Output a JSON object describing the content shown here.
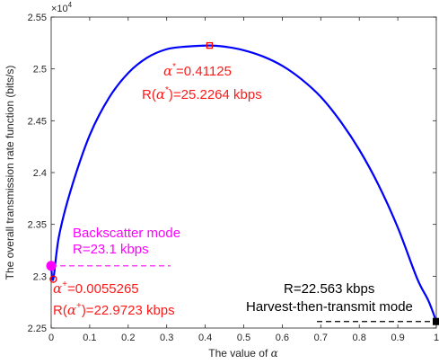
{
  "chart_data": {
    "type": "line",
    "xlabel": "The value of α",
    "ylabel": "The overall transmission rate function (bits/s)",
    "y_exponent_label": "×10",
    "y_exponent_power": "4",
    "xlim": [
      0,
      1
    ],
    "ylim": [
      22500,
      25500
    ],
    "x_ticks": [
      "0",
      "0.1",
      "0.2",
      "0.3",
      "0.4",
      "0.5",
      "0.6",
      "0.7",
      "0.8",
      "0.9",
      "1"
    ],
    "y_ticks": [
      "2.25",
      "2.3",
      "2.35",
      "2.4",
      "2.45",
      "2.5",
      "2.55"
    ],
    "grid": false,
    "series": [
      {
        "color": "#0000ff",
        "x": [
          0.0,
          0.0055,
          0.02,
          0.05,
          0.1,
          0.15,
          0.2,
          0.25,
          0.3,
          0.35,
          0.41125,
          0.45,
          0.5,
          0.55,
          0.6,
          0.65,
          0.7,
          0.75,
          0.8,
          0.85,
          0.9,
          0.95,
          0.98,
          1.0
        ],
        "y": [
          23100,
          22972,
          23380,
          23820,
          24360,
          24720,
          24960,
          25110,
          25190,
          25215,
          25226,
          25215,
          25180,
          25120,
          25030,
          24900,
          24730,
          24500,
          24220,
          23880,
          23470,
          22980,
          22760,
          22563
        ]
      }
    ],
    "markers": [
      {
        "name": "alpha-star-marker",
        "x": 0.41125,
        "y": 25226,
        "shape": "square",
        "color": "#ff0000"
      },
      {
        "name": "backscatter-marker",
        "x": 0.0,
        "y": 23100,
        "shape": "filled-circle",
        "color": "#ff00ff"
      },
      {
        "name": "alpha-plus-marker",
        "x": 0.0055,
        "y": 22972,
        "shape": "circle",
        "color": "#ff0000"
      },
      {
        "name": "htt-marker",
        "x": 1.0,
        "y": 22563,
        "shape": "filled-square",
        "color": "#000000"
      }
    ],
    "reference_lines": [
      {
        "name": "backscatter-line",
        "x": [
          0.0,
          0.31
        ],
        "y": 23100,
        "color": "#ff00ff"
      },
      {
        "name": "htt-line",
        "x": [
          0.69,
          1.0
        ],
        "y": 22563,
        "color": "#000000"
      }
    ],
    "annotations": {
      "alpha_star_value": "=0.41125",
      "r_alpha_star_value": ")=25.2264 kbps",
      "backscatter_title": "Backscatter mode",
      "backscatter_value": "R=23.1 kbps",
      "alpha_plus_value": "=0.0055265",
      "r_alpha_plus_value": ")=22.9723 kbps",
      "htt_value": "R=22.563 kbps",
      "htt_title": "Harvest-then-transmit mode"
    }
  }
}
